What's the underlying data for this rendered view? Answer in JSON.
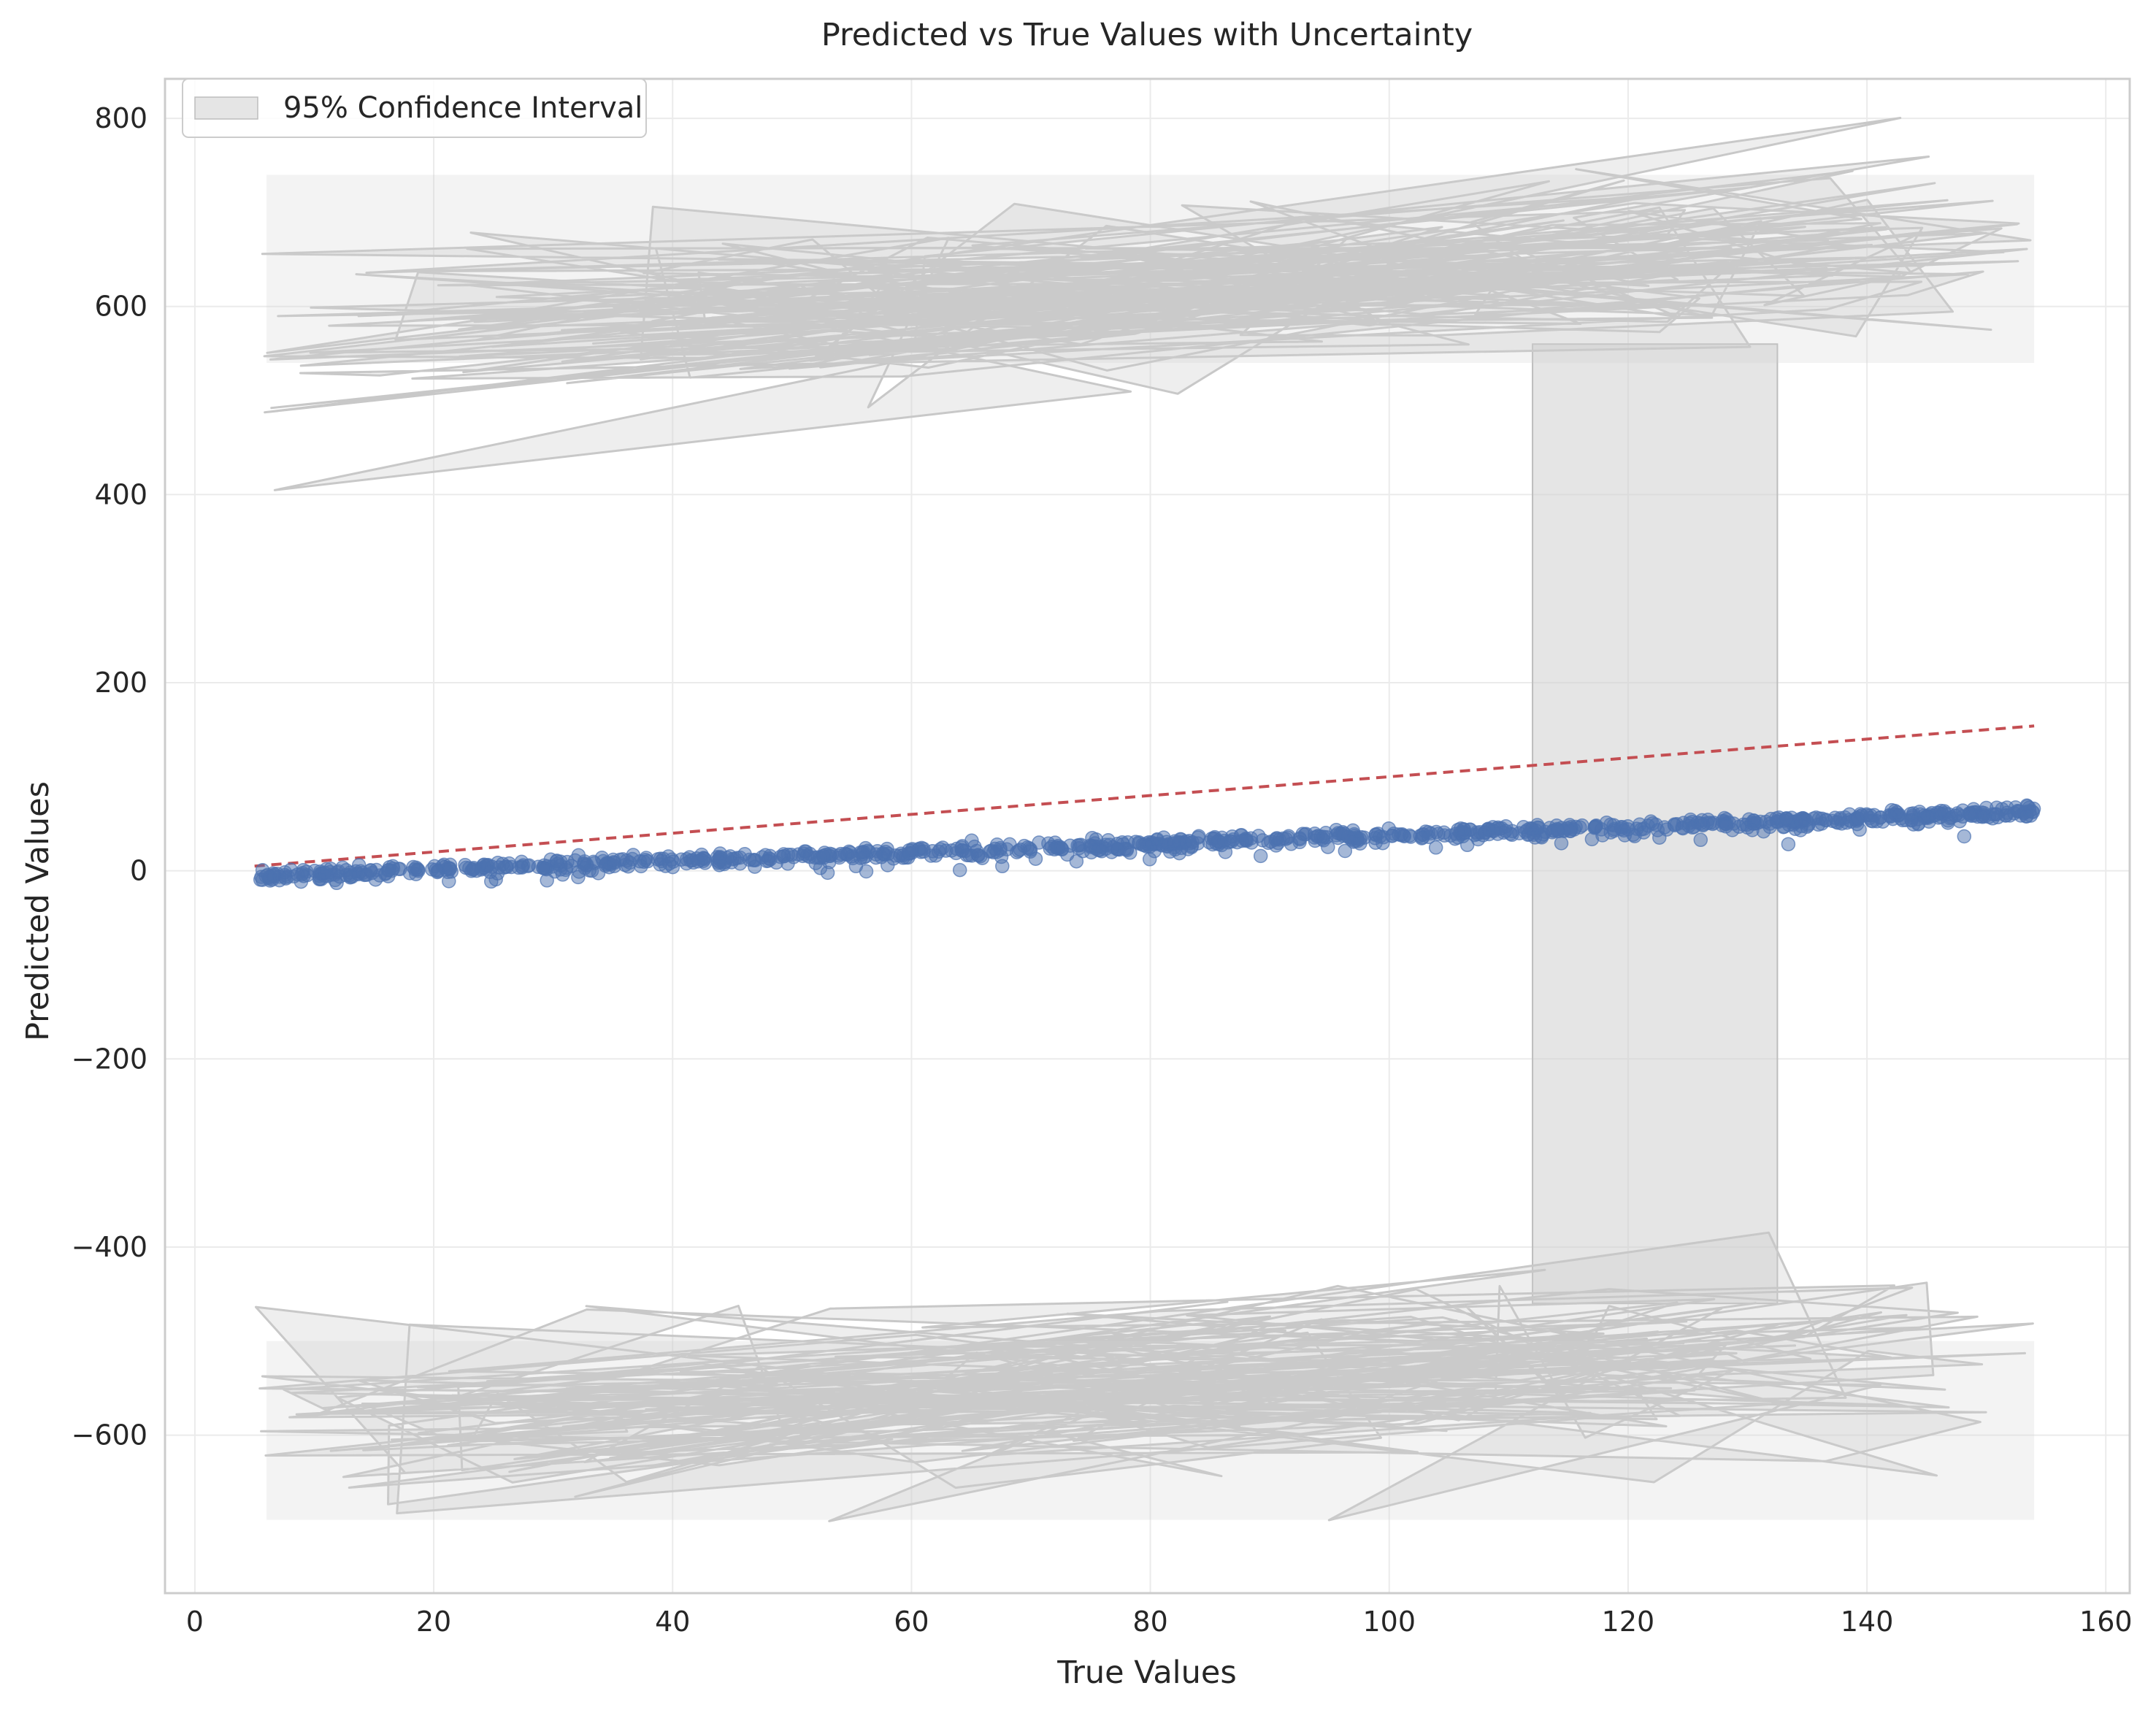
{
  "chart_data": {
    "type": "scatter",
    "title": "Predicted vs True Values with Uncertainty",
    "xlabel": "True Values",
    "ylabel": "Predicted Values",
    "xlim": [
      -2.5,
      162
    ],
    "ylim": [
      -768,
      842
    ],
    "xticks": [
      0,
      20,
      40,
      60,
      80,
      100,
      120,
      140,
      160
    ],
    "xtick_labels": [
      "0",
      "20",
      "40",
      "60",
      "80",
      "100",
      "120",
      "140",
      "160"
    ],
    "yticks": [
      800,
      600,
      400,
      200,
      0,
      -200,
      -400,
      -600
    ],
    "ytick_labels": [
      "800",
      "600",
      "400",
      "200",
      "0",
      "−200",
      "−400",
      "−600"
    ],
    "grid": true,
    "legend": {
      "placement": "top-left",
      "entries": [
        "95% Confidence Interval"
      ]
    },
    "colors": {
      "scatter": "#4c72b0",
      "identity_line": "#c44e52",
      "band_fill": "#cfcfcf",
      "grid": "#ebebeb",
      "spine": "#cccccc"
    },
    "scatter_description": {
      "x_range": [
        5,
        154
      ],
      "prediction_model": "predicted ≈ 0.44 × true − 6",
      "predicted_at_x_5": -6,
      "predicted_at_x_154": 62,
      "point_count_approx": 1000
    },
    "identity_line": {
      "x": [
        5,
        154
      ],
      "y": [
        5,
        154
      ]
    },
    "confidence_band": {
      "upper_range": [
        500,
        770
      ],
      "lower_range": [
        -700,
        -440
      ],
      "highlighted_x_span": [
        112,
        132.5
      ]
    }
  }
}
